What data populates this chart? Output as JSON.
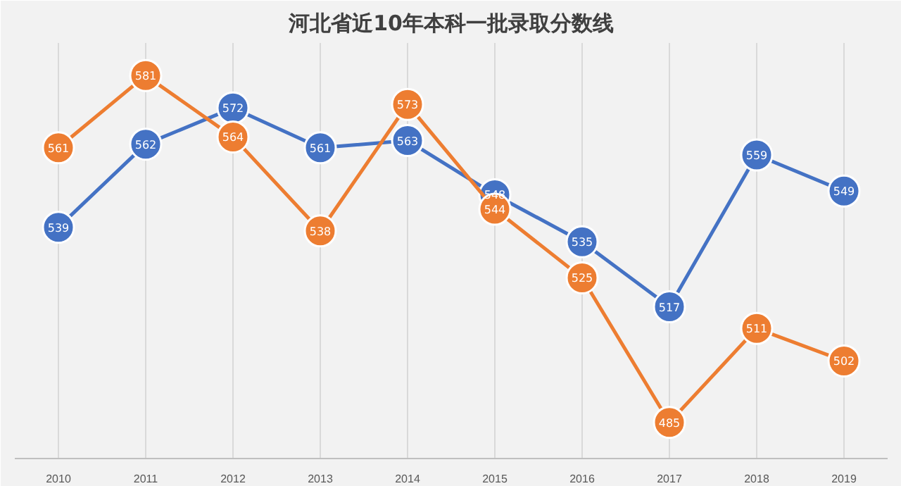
{
  "chart_data": {
    "type": "line",
    "title": "河北省近10年本科一批录取分数线",
    "categories": [
      "2010",
      "2011",
      "2012",
      "2013",
      "2014",
      "2015",
      "2016",
      "2017",
      "2018",
      "2019"
    ],
    "series": [
      {
        "color": "#4472c4",
        "values": [
          539,
          562,
          572,
          561,
          563,
          548,
          535,
          517,
          559,
          549
        ]
      },
      {
        "color": "#ed7d31",
        "values": [
          561,
          581,
          564,
          538,
          573,
          544,
          525,
          485,
          511,
          502
        ]
      }
    ],
    "ylim": [
      475,
      590
    ],
    "data_labels": true,
    "marker": "circle",
    "line_style": "solid",
    "grid": "x",
    "tick_labels": "x"
  }
}
